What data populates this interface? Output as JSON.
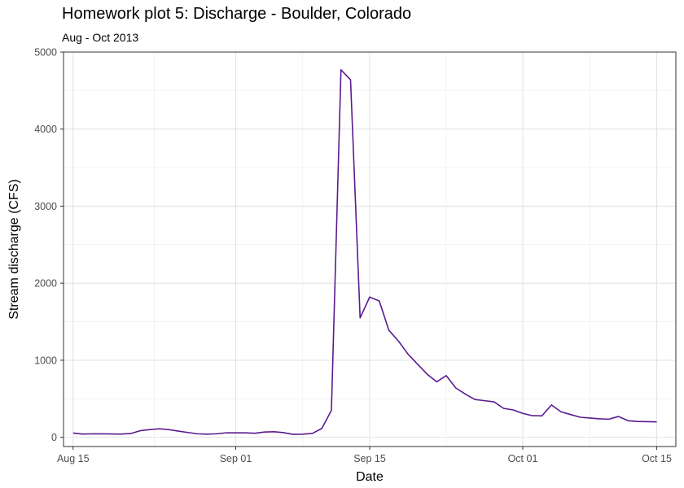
{
  "chart_data": {
    "type": "line",
    "title": "Homework plot 5: Discharge - Boulder, Colorado",
    "subtitle": "Aug - Oct 2013",
    "xlabel": "Date",
    "ylabel": "Stream discharge (CFS)",
    "xlim": [
      "2013-08-14",
      "2013-10-17"
    ],
    "ylim": [
      -120,
      5000
    ],
    "x_ticks": [
      {
        "date": "2013-08-15",
        "label": "Aug 15"
      },
      {
        "date": "2013-09-01",
        "label": "Sep 01"
      },
      {
        "date": "2013-09-15",
        "label": "Sep 15"
      },
      {
        "date": "2013-10-01",
        "label": "Oct 01"
      },
      {
        "date": "2013-10-15",
        "label": "Oct 15"
      }
    ],
    "y_ticks": [
      0,
      1000,
      2000,
      3000,
      4000,
      5000
    ],
    "grid": true,
    "series": [
      {
        "color": "#5b1a8f",
        "x": [
          "2013-08-15",
          "2013-08-16",
          "2013-08-17",
          "2013-08-18",
          "2013-08-19",
          "2013-08-20",
          "2013-08-21",
          "2013-08-22",
          "2013-08-23",
          "2013-08-24",
          "2013-08-25",
          "2013-08-26",
          "2013-08-27",
          "2013-08-28",
          "2013-08-29",
          "2013-08-30",
          "2013-08-31",
          "2013-09-01",
          "2013-09-02",
          "2013-09-03",
          "2013-09-04",
          "2013-09-05",
          "2013-09-06",
          "2013-09-07",
          "2013-09-08",
          "2013-09-09",
          "2013-09-10",
          "2013-09-11",
          "2013-09-12",
          "2013-09-13",
          "2013-09-14",
          "2013-09-15",
          "2013-09-16",
          "2013-09-17",
          "2013-09-18",
          "2013-09-19",
          "2013-09-20",
          "2013-09-21",
          "2013-09-22",
          "2013-09-23",
          "2013-09-24",
          "2013-09-25",
          "2013-09-26",
          "2013-09-27",
          "2013-09-28",
          "2013-09-29",
          "2013-09-30",
          "2013-10-01",
          "2013-10-02",
          "2013-10-03",
          "2013-10-04",
          "2013-10-05",
          "2013-10-06",
          "2013-10-07",
          "2013-10-08",
          "2013-10-09",
          "2013-10-10",
          "2013-10-11",
          "2013-10-12",
          "2013-10-13",
          "2013-10-15"
        ],
        "y": [
          55,
          42,
          45,
          44,
          43,
          42,
          48,
          85,
          100,
          110,
          100,
          80,
          62,
          45,
          40,
          45,
          58,
          58,
          58,
          52,
          68,
          72,
          60,
          38,
          40,
          50,
          115,
          350,
          4770,
          4640,
          1550,
          1820,
          1770,
          1390,
          1250,
          1080,
          950,
          820,
          720,
          800,
          640,
          560,
          490,
          475,
          460,
          375,
          355,
          310,
          280,
          278,
          420,
          330,
          295,
          260,
          250,
          240,
          235,
          270,
          215,
          205,
          200
        ]
      }
    ]
  }
}
